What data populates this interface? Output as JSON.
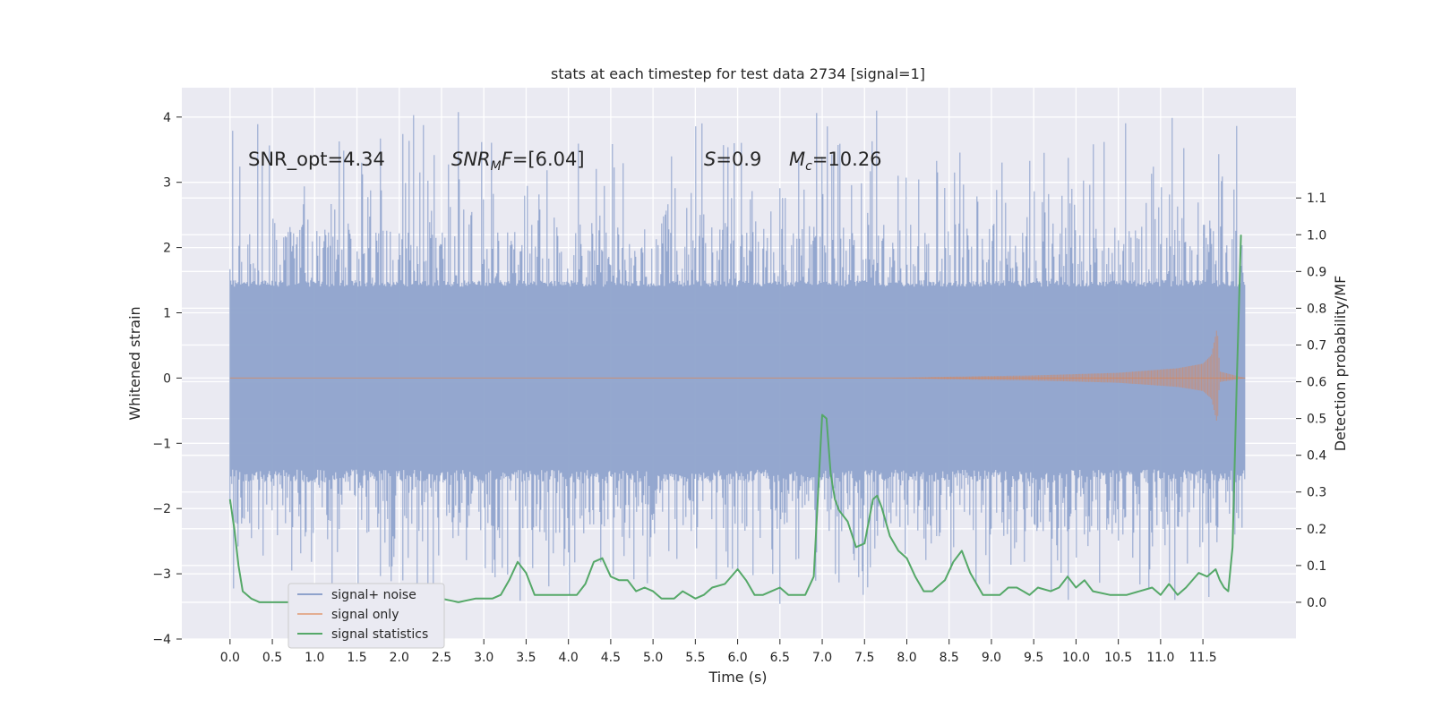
{
  "chart_data": {
    "type": "line",
    "title": "stats at each timestep for test data 2734 [signal=1]",
    "xlabel": "Time (s)",
    "ylabel_left": "Whitened strain",
    "ylabel_right": "Detection probability/MF",
    "xlim": [
      -0.57,
      12.6
    ],
    "ylim_left": [
      -4.0,
      4.45
    ],
    "ylim_right": [
      -0.1,
      1.4
    ],
    "x_ticks": [
      0.0,
      0.5,
      1.0,
      1.5,
      2.0,
      2.5,
      3.0,
      3.5,
      4.0,
      4.5,
      5.0,
      5.5,
      6.0,
      6.5,
      7.0,
      7.5,
      8.0,
      8.5,
      9.0,
      9.5,
      10.0,
      10.5,
      11.0,
      11.5
    ],
    "x_tick_labels": [
      "0.0",
      "0.5",
      "1.0",
      "1.5",
      "2.0",
      "2.5",
      "3.0",
      "3.5",
      "4.0",
      "4.5",
      "5.0",
      "5.5",
      "6.0",
      "6.5",
      "7.0",
      "7.5",
      "8.0",
      "8.5",
      "9.0",
      "9.5",
      "10.0",
      "10.5",
      "11.0",
      "11.5"
    ],
    "y_left_ticks": [
      -4,
      -3,
      -2,
      -1,
      0,
      1,
      2,
      3,
      4
    ],
    "y_left_tick_labels": [
      "−4",
      "−3",
      "−2",
      "−1",
      "0",
      "1",
      "2",
      "3",
      "4"
    ],
    "y_right_ticks": [
      0.0,
      0.1,
      0.2,
      0.3,
      0.4,
      0.5,
      0.6,
      0.7,
      0.8,
      0.9,
      1.0,
      1.1
    ],
    "y_right_tick_labels": [
      "0.0",
      "0.1",
      "0.2",
      "0.3",
      "0.4",
      "0.5",
      "0.6",
      "0.7",
      "0.8",
      "0.9",
      "1.0",
      "1.1"
    ],
    "grid": true,
    "annotations": [
      "SNR_opt=4.34",
      "SNR_MF=[6.04]",
      "S=0.9",
      "M_c=10.26"
    ],
    "legend": {
      "placement": "lower-left",
      "entries": [
        "signal+ noise",
        "signal only",
        "signal statistics"
      ]
    },
    "colors": {
      "noise": "#8fa3cc",
      "signal": "#dd8452",
      "stat": "#55a868",
      "axes_bg": "#eaeaf2",
      "grid": "#ffffff"
    },
    "series": [
      {
        "name": "signal+ noise",
        "axis": "left",
        "x_range": [
          0.0,
          12.0
        ],
        "band_low": -1.6,
        "band_high": 1.45,
        "peak_max": 4.1,
        "peak_min": -3.5
      },
      {
        "name": "signal only",
        "axis": "left",
        "x_range": [
          0.0,
          12.0
        ],
        "envelope": [
          [
            0.0,
            0.0
          ],
          [
            7.8,
            0.0
          ],
          [
            8.5,
            0.02
          ],
          [
            9.5,
            0.04
          ],
          [
            10.5,
            0.08
          ],
          [
            11.2,
            0.15
          ],
          [
            11.5,
            0.22
          ],
          [
            11.6,
            0.35
          ],
          [
            11.67,
            0.78
          ],
          [
            11.7,
            0.1
          ],
          [
            12.0,
            0.0
          ]
        ]
      },
      {
        "name": "signal statistics",
        "axis": "right",
        "x": [
          0.0,
          0.05,
          0.1,
          0.15,
          0.25,
          0.35,
          0.5,
          0.7,
          0.9,
          1.1,
          1.3,
          1.5,
          1.6,
          1.8,
          2.0,
          2.1,
          2.2,
          2.3,
          2.5,
          2.7,
          2.9,
          3.0,
          3.1,
          3.2,
          3.3,
          3.4,
          3.5,
          3.6,
          3.7,
          3.85,
          4.0,
          4.1,
          4.2,
          4.3,
          4.4,
          4.5,
          4.6,
          4.7,
          4.8,
          4.9,
          5.0,
          5.1,
          5.25,
          5.35,
          5.5,
          5.6,
          5.7,
          5.85,
          6.0,
          6.1,
          6.2,
          6.3,
          6.4,
          6.5,
          6.6,
          6.7,
          6.8,
          6.9,
          7.0,
          7.05,
          7.1,
          7.15,
          7.2,
          7.3,
          7.4,
          7.5,
          7.55,
          7.6,
          7.65,
          7.7,
          7.8,
          7.9,
          8.0,
          8.1,
          8.2,
          8.3,
          8.45,
          8.55,
          8.65,
          8.75,
          8.9,
          9.0,
          9.1,
          9.2,
          9.3,
          9.45,
          9.55,
          9.7,
          9.8,
          9.9,
          10.0,
          10.1,
          10.2,
          10.4,
          10.6,
          10.75,
          10.9,
          11.0,
          11.1,
          11.2,
          11.3,
          11.45,
          11.55,
          11.65,
          11.7,
          11.75,
          11.8,
          11.85,
          11.9,
          11.95
        ],
        "y": [
          0.28,
          0.2,
          0.1,
          0.03,
          0.01,
          0.0,
          0.0,
          0.0,
          0.0,
          0.0,
          0.0,
          0.0,
          0.01,
          0.0,
          0.01,
          0.03,
          0.05,
          0.03,
          0.01,
          0.0,
          0.01,
          0.01,
          0.01,
          0.02,
          0.06,
          0.11,
          0.08,
          0.02,
          0.02,
          0.02,
          0.02,
          0.02,
          0.05,
          0.11,
          0.12,
          0.07,
          0.06,
          0.06,
          0.03,
          0.04,
          0.03,
          0.01,
          0.01,
          0.03,
          0.01,
          0.02,
          0.04,
          0.05,
          0.09,
          0.06,
          0.02,
          0.02,
          0.03,
          0.04,
          0.02,
          0.02,
          0.02,
          0.07,
          0.51,
          0.5,
          0.35,
          0.28,
          0.25,
          0.22,
          0.15,
          0.16,
          0.22,
          0.28,
          0.29,
          0.26,
          0.18,
          0.14,
          0.12,
          0.07,
          0.03,
          0.03,
          0.06,
          0.11,
          0.14,
          0.08,
          0.02,
          0.02,
          0.02,
          0.04,
          0.04,
          0.02,
          0.04,
          0.03,
          0.04,
          0.07,
          0.04,
          0.06,
          0.03,
          0.02,
          0.02,
          0.03,
          0.04,
          0.02,
          0.05,
          0.02,
          0.04,
          0.08,
          0.07,
          0.09,
          0.06,
          0.04,
          0.03,
          0.15,
          0.6,
          1.0
        ]
      }
    ]
  }
}
